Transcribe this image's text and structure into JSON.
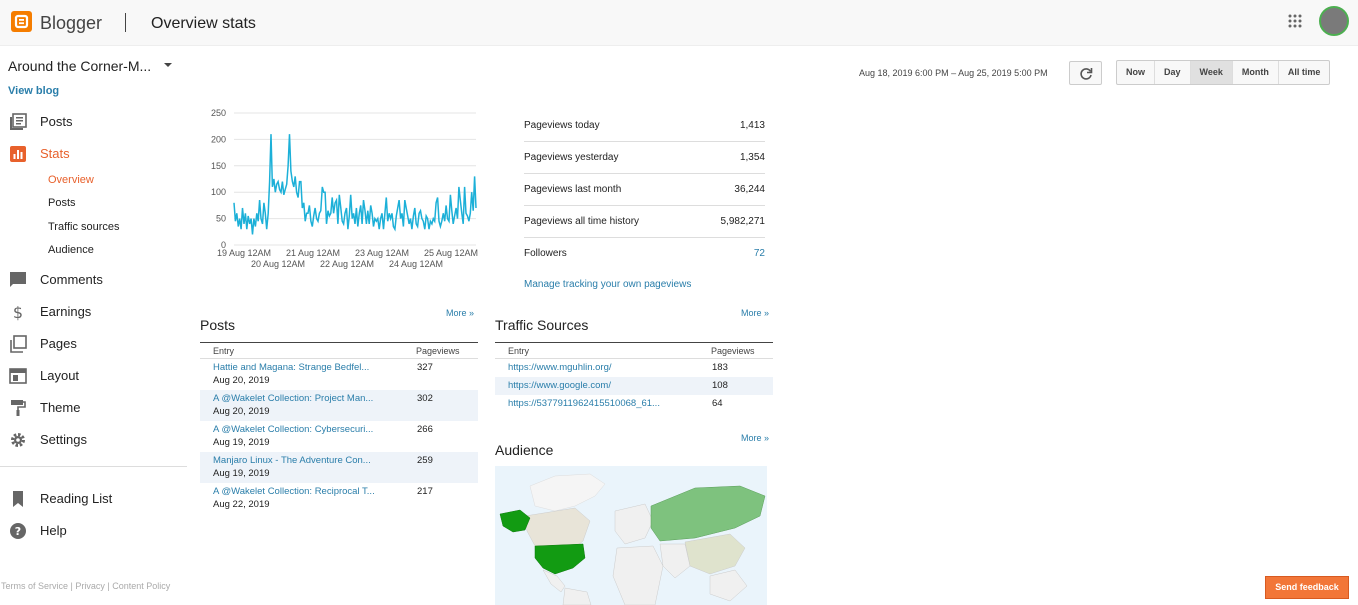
{
  "header": {
    "brand": "Blogger",
    "page_title": "Overview stats"
  },
  "sidebar": {
    "blog_name": "Around the Corner-M...",
    "view_blog": "View blog",
    "items": [
      {
        "label": "Posts",
        "icon": "posts-icon"
      },
      {
        "label": "Stats",
        "icon": "stats-icon",
        "active": true
      },
      {
        "label": "Comments",
        "icon": "comments-icon"
      },
      {
        "label": "Earnings",
        "icon": "dollar-icon"
      },
      {
        "label": "Pages",
        "icon": "pages-icon"
      },
      {
        "label": "Layout",
        "icon": "layout-icon"
      },
      {
        "label": "Theme",
        "icon": "theme-roller-icon"
      },
      {
        "label": "Settings",
        "icon": "gear-icon"
      }
    ],
    "stats_sub": [
      "Overview",
      "Posts",
      "Traffic sources",
      "Audience"
    ],
    "lower_items": [
      {
        "label": "Reading List",
        "icon": "bookmark-icon"
      },
      {
        "label": "Help",
        "icon": "help-icon"
      }
    ],
    "footer": [
      "Terms of Service",
      "Privacy",
      "Content Policy"
    ]
  },
  "toolbar": {
    "date_range": "Aug 18, 2019 6:00 PM – Aug 25, 2019 5:00 PM",
    "ranges": [
      "Now",
      "Day",
      "Week",
      "Month",
      "All time"
    ],
    "active_range": "Week"
  },
  "chart_data": {
    "type": "line",
    "yticks": [
      0,
      50,
      100,
      150,
      200,
      250
    ],
    "ylim": [
      0,
      250
    ],
    "xticks_top": [
      "19 Aug 12AM",
      "21 Aug 12AM",
      "23 Aug 12AM",
      "25 Aug 12AM"
    ],
    "xticks_bottom": [
      "20 Aug 12AM",
      "22 Aug 12AM",
      "24 Aug 12AM"
    ],
    "color": "#1cb0d8",
    "series": [
      {
        "values": [
          80,
          45,
          60,
          35,
          50,
          30,
          70,
          40,
          60,
          30,
          55,
          40,
          50,
          20,
          50,
          35,
          60,
          45,
          85,
          50,
          40,
          80,
          60,
          30,
          60,
          120,
          210,
          110,
          125,
          100,
          115,
          120,
          105,
          100,
          120,
          95,
          105,
          115,
          150,
          210,
          140,
          120,
          110,
          130,
          100,
          90,
          120,
          120,
          70,
          80,
          45,
          60,
          60,
          75,
          45,
          35,
          55,
          70,
          50,
          45,
          60,
          65,
          110,
          100,
          100,
          40,
          65,
          55,
          60,
          90,
          60,
          80,
          85,
          40,
          95,
          70,
          45,
          40,
          60,
          70,
          30,
          55,
          95,
          50,
          60,
          40,
          70,
          35,
          60,
          75,
          40,
          85,
          65,
          40,
          65,
          40,
          75,
          60,
          35,
          50,
          45,
          50,
          30,
          50,
          60,
          30,
          60,
          90,
          45,
          60,
          50,
          60,
          35,
          30,
          55,
          70,
          85,
          50,
          60,
          35,
          85,
          70,
          55,
          40,
          50,
          30,
          55,
          70,
          40,
          35,
          60,
          65,
          50,
          45,
          30,
          55,
          50,
          30,
          45,
          40,
          50,
          45,
          80,
          90,
          45,
          35,
          45,
          60,
          45,
          75,
          50,
          45,
          95,
          65,
          40,
          55,
          70,
          50,
          110,
          85,
          60,
          40,
          110,
          60,
          55,
          45,
          60,
          100,
          65,
          130,
          70
        ]
      }
    ]
  },
  "summary": {
    "rows": [
      {
        "label": "Pageviews today",
        "value": "1,413"
      },
      {
        "label": "Pageviews yesterday",
        "value": "1,354"
      },
      {
        "label": "Pageviews last month",
        "value": "36,244"
      },
      {
        "label": "Pageviews all time history",
        "value": "5,982,271"
      },
      {
        "label": "Followers",
        "value": "72"
      }
    ],
    "manage_link": "Manage tracking your own pageviews"
  },
  "posts": {
    "title": "Posts",
    "more": "More »",
    "col_entry": "Entry",
    "col_pageviews": "Pageviews",
    "rows": [
      {
        "title": "Hattie and Magana: Strange Bedfel...",
        "date": "Aug 20, 2019",
        "views": "327"
      },
      {
        "title": "A @Wakelet Collection: Project Man...",
        "date": "Aug 20, 2019",
        "views": "302"
      },
      {
        "title": "A @Wakelet Collection: Cybersecuri...",
        "date": "Aug 19, 2019",
        "views": "266"
      },
      {
        "title": "Manjaro Linux - The Adventure Con...",
        "date": "Aug 19, 2019",
        "views": "259"
      },
      {
        "title": "A @Wakelet Collection: Reciprocal T...",
        "date": "Aug 22, 2019",
        "views": "217"
      }
    ]
  },
  "traffic": {
    "title": "Traffic Sources",
    "more": "More »",
    "col_entry": "Entry",
    "col_pageviews": "Pageviews",
    "rows": [
      {
        "url": "https://www.mguhlin.org/",
        "views": "183"
      },
      {
        "url": "https://www.google.com/",
        "views": "108"
      },
      {
        "url": "https://5377911962415510068_61...",
        "views": "64"
      }
    ]
  },
  "audience": {
    "title": "Audience",
    "more": "More »"
  },
  "feedback": "Send feedback",
  "colors": {
    "accent": "#e8612c",
    "link": "#2a7eaa",
    "line": "#1cb0d8",
    "map_high": "#129b12",
    "map_mid": "#7ec27e"
  }
}
